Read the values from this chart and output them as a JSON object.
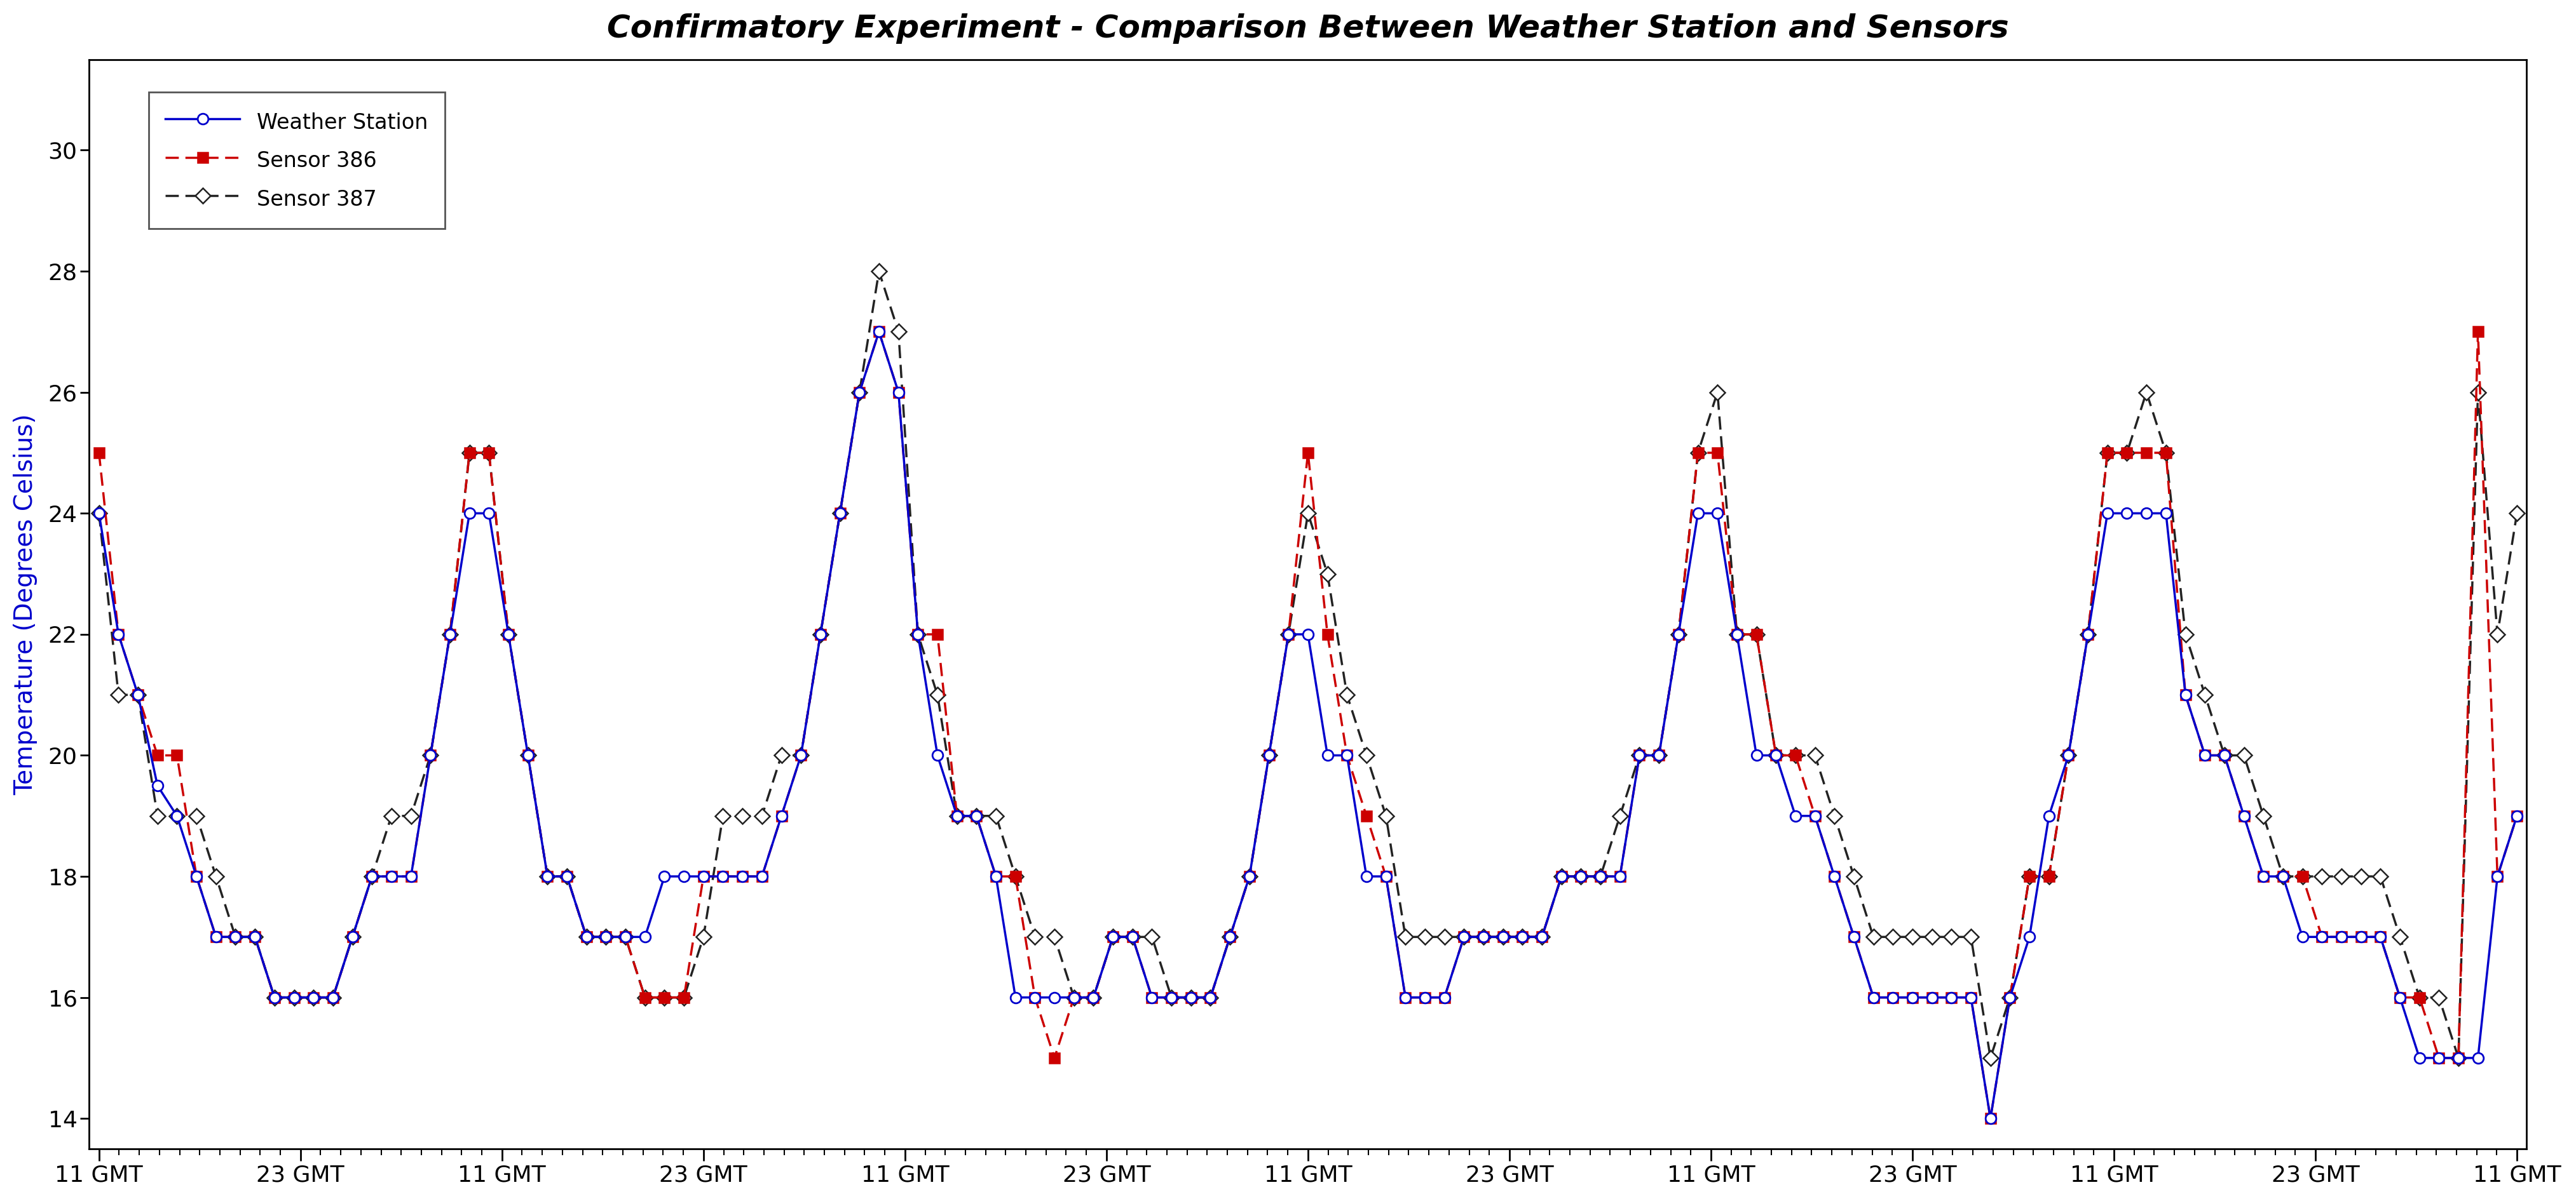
{
  "title": "Confirmatory Experiment - Comparison Between Weather Station and Sensors",
  "ylabel": "Temperature (Degrees Celsius)",
  "ylim": [
    13.5,
    31.5
  ],
  "yticks": [
    14,
    16,
    18,
    20,
    22,
    24,
    26,
    28,
    30
  ],
  "xtick_labels": [
    "11 GMT",
    "23 GMT",
    "11 GMT",
    "23 GMT",
    "11 GMT",
    "23 GMT",
    "11 GMT",
    "23 GMT",
    "11 GMT",
    "23 GMT",
    "11 GMT",
    "23 GMT",
    "11 GMT"
  ],
  "background_color": "#ffffff",
  "plot_bg_color": "#ffffff",
  "legend": [
    "Weather Station",
    "Sensor 386",
    "Sensor 387"
  ],
  "ws_color": "#0000cc",
  "s386_color": "#cc0000",
  "s387_color": "#222222",
  "weather_station": [
    24.0,
    22.0,
    21.0,
    19.5,
    19.0,
    18.0,
    17.0,
    17.0,
    17.0,
    16.0,
    16.0,
    16.0,
    16.0,
    17.0,
    18.0,
    18.0,
    18.0,
    20.0,
    22.0,
    24.0,
    24.0,
    22.0,
    20.0,
    18.0,
    18.0,
    17.0,
    17.0,
    17.0,
    17.0,
    18.0,
    18.0,
    18.0,
    18.0,
    18.0,
    18.0,
    19.0,
    20.0,
    22.0,
    24.0,
    26.0,
    27.0,
    26.0,
    22.0,
    20.0,
    19.0,
    19.0,
    18.0,
    16.0,
    16.0,
    16.0,
    16.0,
    16.0,
    17.0,
    17.0,
    16.0,
    16.0,
    16.0,
    16.0,
    17.0,
    18.0,
    20.0,
    22.0,
    22.0,
    20.0,
    20.0,
    18.0,
    18.0,
    16.0,
    16.0,
    16.0,
    17.0,
    17.0,
    17.0,
    17.0,
    17.0,
    18.0,
    18.0,
    18.0,
    18.0,
    20.0,
    20.0,
    22.0,
    24.0,
    24.0,
    22.0,
    20.0,
    20.0,
    19.0,
    19.0,
    18.0,
    17.0,
    16.0,
    16.0,
    16.0,
    16.0,
    16.0,
    16.0,
    14.0,
    16.0,
    17.0,
    19.0,
    20.0,
    22.0,
    24.0,
    24.0,
    24.0,
    24.0,
    21.0,
    20.0,
    20.0,
    19.0,
    18.0,
    18.0,
    17.0,
    17.0,
    17.0,
    17.0,
    17.0,
    16.0,
    15.0,
    15.0,
    15.0,
    15.0,
    18.0,
    19.0
  ],
  "sensor386": [
    25.0,
    22.0,
    21.0,
    20.0,
    20.0,
    18.0,
    17.0,
    17.0,
    17.0,
    16.0,
    16.0,
    16.0,
    16.0,
    17.0,
    18.0,
    18.0,
    18.0,
    20.0,
    22.0,
    25.0,
    25.0,
    22.0,
    20.0,
    18.0,
    18.0,
    17.0,
    17.0,
    17.0,
    16.0,
    16.0,
    16.0,
    18.0,
    18.0,
    18.0,
    18.0,
    19.0,
    20.0,
    22.0,
    24.0,
    26.0,
    27.0,
    26.0,
    22.0,
    22.0,
    19.0,
    19.0,
    18.0,
    18.0,
    16.0,
    15.0,
    16.0,
    16.0,
    17.0,
    17.0,
    16.0,
    16.0,
    16.0,
    16.0,
    17.0,
    18.0,
    20.0,
    22.0,
    25.0,
    22.0,
    20.0,
    19.0,
    18.0,
    16.0,
    16.0,
    16.0,
    17.0,
    17.0,
    17.0,
    17.0,
    17.0,
    18.0,
    18.0,
    18.0,
    18.0,
    20.0,
    20.0,
    22.0,
    25.0,
    25.0,
    22.0,
    22.0,
    20.0,
    20.0,
    19.0,
    18.0,
    17.0,
    16.0,
    16.0,
    16.0,
    16.0,
    16.0,
    16.0,
    14.0,
    16.0,
    18.0,
    18.0,
    20.0,
    22.0,
    25.0,
    25.0,
    25.0,
    25.0,
    21.0,
    20.0,
    20.0,
    19.0,
    18.0,
    18.0,
    18.0,
    17.0,
    17.0,
    17.0,
    17.0,
    16.0,
    16.0,
    15.0,
    15.0,
    27.0,
    18.0,
    19.0
  ],
  "sensor387": [
    24.0,
    21.0,
    21.0,
    19.0,
    19.0,
    19.0,
    18.0,
    17.0,
    17.0,
    16.0,
    16.0,
    16.0,
    16.0,
    17.0,
    18.0,
    19.0,
    19.0,
    20.0,
    22.0,
    25.0,
    25.0,
    22.0,
    20.0,
    18.0,
    18.0,
    17.0,
    17.0,
    17.0,
    16.0,
    16.0,
    16.0,
    17.0,
    19.0,
    19.0,
    19.0,
    20.0,
    20.0,
    22.0,
    24.0,
    26.0,
    28.0,
    27.0,
    22.0,
    21.0,
    19.0,
    19.0,
    19.0,
    18.0,
    17.0,
    17.0,
    16.0,
    16.0,
    17.0,
    17.0,
    17.0,
    16.0,
    16.0,
    16.0,
    17.0,
    18.0,
    20.0,
    22.0,
    24.0,
    23.0,
    21.0,
    20.0,
    19.0,
    17.0,
    17.0,
    17.0,
    17.0,
    17.0,
    17.0,
    17.0,
    17.0,
    18.0,
    18.0,
    18.0,
    19.0,
    20.0,
    20.0,
    22.0,
    25.0,
    26.0,
    22.0,
    22.0,
    20.0,
    20.0,
    20.0,
    19.0,
    18.0,
    17.0,
    17.0,
    17.0,
    17.0,
    17.0,
    17.0,
    15.0,
    16.0,
    18.0,
    18.0,
    20.0,
    22.0,
    25.0,
    25.0,
    26.0,
    25.0,
    22.0,
    21.0,
    20.0,
    20.0,
    19.0,
    18.0,
    18.0,
    18.0,
    18.0,
    18.0,
    18.0,
    17.0,
    16.0,
    16.0,
    15.0,
    26.0,
    22.0,
    24.0
  ]
}
